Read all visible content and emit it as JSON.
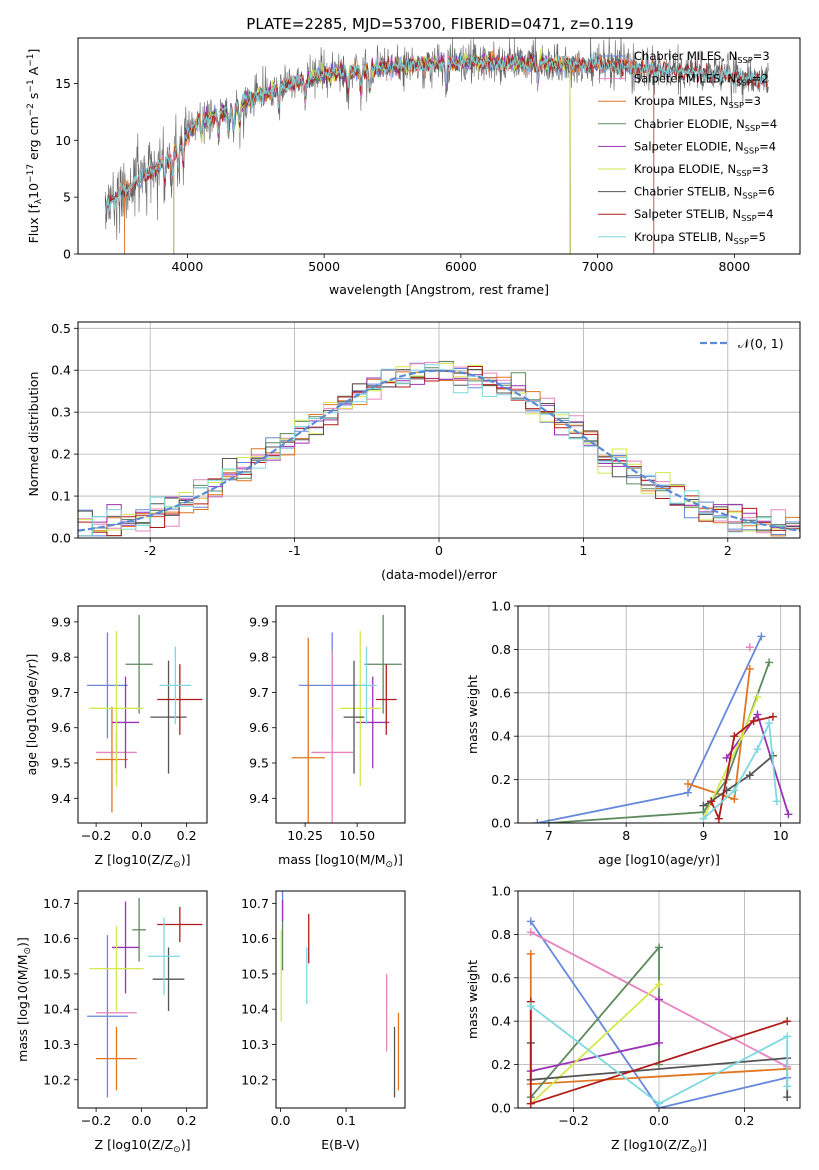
{
  "figure": {
    "title": "PLATE=2285, MJD=53700, FIBERID=0471, z=0.119"
  },
  "colors": {
    "chabrier_miles": "#6688dd",
    "salpeter_miles": "#e883bf",
    "kroupa_miles": "#e0761f",
    "chabrier_elodie": "#5c8a5c",
    "salpeter_elodie": "#9b33b5",
    "kroupa_elodie": "#d6e84f",
    "chabrier_stelib": "#555555",
    "salpeter_stelib": "#b01c1c",
    "kroupa_stelib": "#7fd8e0",
    "normal": "#5b8ad6"
  },
  "chart_data": [
    {
      "id": "spectrum",
      "type": "line",
      "xlabel": "wavelength [Angstrom, rest frame]",
      "ylabel": "Flux [f_λ 10^-17 erg cm^-2 s^-1 A^-1]",
      "xlim": [
        3200,
        8480
      ],
      "ylim": [
        0,
        19
      ],
      "xticks": [
        4000,
        5000,
        6000,
        7000,
        8000
      ],
      "yticks": [
        0,
        5,
        10,
        15
      ],
      "legend_position": "top-right",
      "series_names": [
        "Chabrier MILES, N_SSP=3",
        "Salpeter MILES, N_SSP=2",
        "Kroupa MILES, N_SSP=3",
        "Chabrier ELODIE, N_SSP=4",
        "Salpeter ELODIE, N_SSP=4",
        "Kroupa ELODIE, N_SSP=3",
        "Chabrier STELIB, N_SSP=6",
        "Salpeter STELIB, N_SSP=4",
        "Kroupa STELIB, N_SSP=5"
      ],
      "continuum": {
        "x": [
          3400,
          3500,
          3600,
          3700,
          3800,
          3900,
          4000,
          4100,
          4200,
          4300,
          4400,
          4500,
          4700,
          5000,
          5300,
          5600,
          6000,
          6500,
          7000,
          7500,
          8000,
          8250
        ],
        "y": [
          4.2,
          5.2,
          6.0,
          7.0,
          7.8,
          8.8,
          10.5,
          11.8,
          12.2,
          12.5,
          13.2,
          13.8,
          14.8,
          15.8,
          16.2,
          16.6,
          16.9,
          16.8,
          16.6,
          16.2,
          15.6,
          15.2
        ]
      },
      "model_ranges": [
        {
          "series": "Chabrier MILES",
          "xmin": 3540,
          "xmax": 7410
        },
        {
          "series": "Salpeter MILES",
          "xmin": 3540,
          "xmax": 7410
        },
        {
          "series": "Kroupa MILES",
          "xmin": 3540,
          "xmax": 7410
        },
        {
          "series": "Chabrier ELODIE",
          "xmin": 3900,
          "xmax": 6800
        },
        {
          "series": "Salpeter ELODIE",
          "xmin": 3900,
          "xmax": 6800
        },
        {
          "series": "Kroupa ELODIE",
          "xmin": 3900,
          "xmax": 6800
        },
        {
          "series": "Chabrier STELIB",
          "xmin": 3400,
          "xmax": 8250
        },
        {
          "series": "Salpeter STELIB",
          "xmin": 3400,
          "xmax": 8250
        },
        {
          "series": "Kroupa STELIB",
          "xmin": 3400,
          "xmax": 8250
        }
      ]
    },
    {
      "id": "residuals",
      "type": "histogram",
      "xlabel": "(data-model)/error",
      "ylabel": "Normed distribution",
      "xlim": [
        -2.5,
        2.5
      ],
      "ylim": [
        0,
        0.515
      ],
      "xticks": [
        -2,
        -1,
        0,
        1,
        2
      ],
      "yticks": [
        0.0,
        0.1,
        0.2,
        0.3,
        0.4,
        0.5
      ],
      "grid": true,
      "legend_position": "top-right",
      "legend_label": "N(0,1)",
      "bin_width": 0.1,
      "bin_start": -2.5,
      "gaussian": {
        "mean": 0,
        "sigma": 1
      }
    },
    {
      "id": "age_vs_Z",
      "type": "errorbar",
      "xlabel": "Z [log10(Z/Z⊙)]",
      "ylabel": "age [log10(age/yr)]",
      "xlim": [
        -0.28,
        0.29
      ],
      "ylim": [
        9.33,
        9.945
      ],
      "xticks": [
        -0.2,
        0.0,
        0.2
      ],
      "xtick_labels": [
        "−0.2",
        "0.0",
        "0.2"
      ],
      "yticks": [
        9.4,
        9.5,
        9.6,
        9.7,
        9.8,
        9.9
      ],
      "points": [
        {
          "series": "Chabrier MILES",
          "x": -0.15,
          "xerr": 0.09,
          "y": 9.72,
          "yerr": 0.15
        },
        {
          "series": "Salpeter MILES",
          "x": -0.11,
          "xerr": 0.09,
          "y": 9.53,
          "yerr": 0.06
        },
        {
          "series": "Kroupa MILES",
          "x": -0.13,
          "xerr": 0.07,
          "y": 9.51,
          "yerr": 0.15
        },
        {
          "series": "Chabrier ELODIE",
          "x": -0.01,
          "xerr": 0.06,
          "y": 9.78,
          "yerr": 0.14
        },
        {
          "series": "Salpeter ELODIE",
          "x": -0.07,
          "xerr": 0.06,
          "y": 9.615,
          "yerr": 0.13
        },
        {
          "series": "Kroupa ELODIE",
          "x": -0.11,
          "xerr": 0.12,
          "y": 9.655,
          "yerr": 0.22
        },
        {
          "series": "Chabrier STELIB",
          "x": 0.12,
          "xerr": 0.08,
          "y": 9.63,
          "yerr": 0.16
        },
        {
          "series": "Salpeter STELIB",
          "x": 0.17,
          "xerr": 0.1,
          "y": 9.68,
          "yerr": 0.1
        },
        {
          "series": "Kroupa STELIB",
          "x": 0.15,
          "xerr": 0.07,
          "y": 9.72,
          "yerr": 0.11
        }
      ]
    },
    {
      "id": "age_vs_mass",
      "type": "errorbar",
      "xlabel": "mass [log10(M/M⊙)]",
      "ylabel": "",
      "xlim": [
        10.11,
        10.73
      ],
      "ylim": [
        9.33,
        9.945
      ],
      "xticks": [
        10.25,
        10.5
      ],
      "xtick_labels": [
        "10.25",
        "10.50"
      ],
      "yticks": [
        9.4,
        9.5,
        9.6,
        9.7,
        9.8,
        9.9
      ],
      "points": [
        {
          "series": "Chabrier MILES",
          "x": 10.38,
          "xerr": 0.16,
          "y": 9.72,
          "yerr": 0.15
        },
        {
          "series": "Salpeter MILES",
          "x": 10.38,
          "xerr": 0.1,
          "y": 9.53,
          "yerr": 0.29
        },
        {
          "series": "Kroupa MILES",
          "x": 10.265,
          "xerr": 0.08,
          "y": 9.515,
          "yerr": 0.34
        },
        {
          "series": "Chabrier ELODIE",
          "x": 10.625,
          "xerr": 0.09,
          "y": 9.78,
          "yerr": 0.14
        },
        {
          "series": "Salpeter ELODIE",
          "x": 10.575,
          "xerr": 0.08,
          "y": 9.615,
          "yerr": 0.13
        },
        {
          "series": "Kroupa ELODIE",
          "x": 10.515,
          "xerr": 0.1,
          "y": 9.655,
          "yerr": 0.22
        },
        {
          "series": "Chabrier STELIB",
          "x": 10.485,
          "xerr": 0.05,
          "y": 9.63,
          "yerr": 0.16
        },
        {
          "series": "Salpeter STELIB",
          "x": 10.64,
          "xerr": 0.05,
          "y": 9.68,
          "yerr": 0.1
        },
        {
          "series": "Kroupa STELIB",
          "x": 10.545,
          "xerr": 0.05,
          "y": 9.72,
          "yerr": 0.11
        }
      ]
    },
    {
      "id": "weight_vs_age",
      "type": "line",
      "xlabel": "age [log10(age/yr)]",
      "ylabel": "mass weight",
      "xlim": [
        6.6,
        10.25
      ],
      "ylim": [
        0,
        1
      ],
      "xticks": [
        7,
        8,
        9,
        10
      ],
      "yticks": [
        0.0,
        0.2,
        0.4,
        0.6,
        0.8,
        1.0
      ],
      "grid": true,
      "series": [
        {
          "name": "Chabrier MILES",
          "x": [
            6.85,
            8.8,
            9.75
          ],
          "y": [
            0.0,
            0.14,
            0.86
          ]
        },
        {
          "name": "Salpeter MILES",
          "x": [
            9.6
          ],
          "y": [
            0.81
          ]
        },
        {
          "name": "Kroupa MILES",
          "x": [
            8.8,
            9.4,
            9.6
          ],
          "y": [
            0.18,
            0.11,
            0.71
          ]
        },
        {
          "name": "Chabrier ELODIE",
          "x": [
            7.0,
            9.0,
            9.3,
            9.85
          ],
          "y": [
            0.0,
            0.05,
            0.2,
            0.74
          ]
        },
        {
          "name": "Salpeter ELODIE",
          "x": [
            9.3,
            9.7,
            10.1
          ],
          "y": [
            0.3,
            0.5,
            0.04
          ]
        },
        {
          "name": "Kroupa ELODIE",
          "x": [
            9.0,
            9.5,
            9.7
          ],
          "y": [
            0.02,
            0.4,
            0.58
          ]
        },
        {
          "name": "Chabrier STELIB",
          "x": [
            9.0,
            9.1,
            9.3,
            9.6,
            9.9
          ],
          "y": [
            0.08,
            0.1,
            0.15,
            0.22,
            0.31
          ]
        },
        {
          "name": "Salpeter STELIB",
          "x": [
            9.1,
            9.2,
            9.4,
            9.65,
            9.9
          ],
          "y": [
            0.1,
            0.02,
            0.4,
            0.47,
            0.49
          ]
        },
        {
          "name": "Kroupa STELIB",
          "x": [
            9.0,
            9.4,
            9.7,
            9.85,
            9.95
          ],
          "y": [
            0.02,
            0.15,
            0.34,
            0.46,
            0.1
          ]
        }
      ]
    },
    {
      "id": "mass_vs_Z",
      "type": "errorbar",
      "xlabel": "Z [log10(Z/Z⊙)]",
      "ylabel": "mass [log10(M/M⊙)]",
      "xlim": [
        -0.28,
        0.29
      ],
      "ylim": [
        10.12,
        10.735
      ],
      "xticks": [
        -0.2,
        0.0,
        0.2
      ],
      "xtick_labels": [
        "−0.2",
        "0.0",
        "0.2"
      ],
      "yticks": [
        10.2,
        10.3,
        10.4,
        10.5,
        10.6,
        10.7
      ],
      "points": [
        {
          "series": "Chabrier MILES",
          "x": -0.15,
          "xerr": 0.09,
          "y": 10.38,
          "yerr": 0.23
        },
        {
          "series": "Salpeter MILES",
          "x": -0.11,
          "xerr": 0.09,
          "y": 10.39,
          "yerr": 0.0
        },
        {
          "series": "Kroupa MILES",
          "x": -0.11,
          "xerr": 0.09,
          "y": 10.26,
          "yerr": 0.09
        },
        {
          "series": "Chabrier ELODIE",
          "x": -0.01,
          "xerr": 0.03,
          "y": 10.625,
          "yerr": 0.09
        },
        {
          "series": "Salpeter ELODIE",
          "x": -0.07,
          "xerr": 0.06,
          "y": 10.575,
          "yerr": 0.13
        },
        {
          "series": "Kroupa ELODIE",
          "x": -0.11,
          "xerr": 0.12,
          "y": 10.515,
          "yerr": 0.12
        },
        {
          "series": "Chabrier STELIB",
          "x": 0.12,
          "xerr": 0.07,
          "y": 10.485,
          "yerr": 0.09
        },
        {
          "series": "Salpeter STELIB",
          "x": 0.17,
          "xerr": 0.1,
          "y": 10.64,
          "yerr": 0.05
        },
        {
          "series": "Kroupa STELIB",
          "x": 0.1,
          "xerr": 0.07,
          "y": 10.55,
          "yerr": 0.11
        }
      ]
    },
    {
      "id": "mass_vs_ebv",
      "type": "errorbar",
      "xlabel": "E(B-V)",
      "ylabel": "",
      "xlim": [
        -0.007,
        0.19
      ],
      "ylim": [
        10.12,
        10.735
      ],
      "xticks": [
        0.0,
        0.1
      ],
      "xtick_labels": [
        "0.0",
        "0.1"
      ],
      "yticks": [
        10.2,
        10.3,
        10.4,
        10.5,
        10.6,
        10.7
      ],
      "points": [
        {
          "series": "Chabrier MILES",
          "x": 0.003,
          "y": 10.7,
          "yerr": 0.05
        },
        {
          "series": "Salpeter MILES",
          "x": 0.162,
          "y": 10.39,
          "yerr": 0.11
        },
        {
          "series": "Kroupa MILES",
          "x": 0.18,
          "y": 10.28,
          "yerr": 0.11
        },
        {
          "series": "Chabrier ELODIE",
          "x": 0.003,
          "y": 10.58,
          "yerr": 0.07
        },
        {
          "series": "Salpeter ELODIE",
          "x": 0.003,
          "y": 10.68,
          "yerr": 0.03
        },
        {
          "series": "Kroupa ELODIE",
          "x": 0.001,
          "y": 10.495,
          "yerr": 0.13
        },
        {
          "series": "Chabrier STELIB",
          "x": 0.174,
          "y": 10.25,
          "yerr": 0.1
        },
        {
          "series": "Salpeter STELIB",
          "x": 0.043,
          "y": 10.6,
          "yerr": 0.07
        },
        {
          "series": "Kroupa STELIB",
          "x": 0.04,
          "y": 10.495,
          "yerr": 0.08
        }
      ]
    },
    {
      "id": "weight_vs_Z",
      "type": "line",
      "xlabel": "Z [log10(Z/Z⊙)]",
      "ylabel": "mass weight",
      "xlim": [
        -0.33,
        0.33
      ],
      "ylim": [
        0,
        1
      ],
      "xticks": [
        -0.2,
        0.0,
        0.2
      ],
      "xtick_labels": [
        "−0.2",
        "0.0",
        "0.2"
      ],
      "yticks": [
        0.0,
        0.2,
        0.4,
        0.6,
        0.8,
        1.0
      ],
      "grid": true,
      "series": [
        {
          "name": "Chabrier MILES",
          "x": [
            -0.3,
            0.0,
            0.3
          ],
          "y": [
            0.86,
            0.0,
            0.14
          ]
        },
        {
          "name": "Salpeter MILES",
          "x": [
            -0.3,
            0.3
          ],
          "y": [
            0.81,
            0.19
          ]
        },
        {
          "name": "Kroupa MILES",
          "x": [
            -0.3,
            -0.3,
            0.3
          ],
          "y": [
            0.71,
            0.11,
            0.18
          ]
        },
        {
          "name": "Chabrier ELODIE",
          "x": [
            -0.3,
            0.0,
            0.0
          ],
          "y": [
            0.05,
            0.74,
            0.2
          ]
        },
        {
          "name": "Salpeter ELODIE",
          "x": [
            -0.3,
            0.0,
            0.0
          ],
          "y": [
            0.17,
            0.3,
            0.5
          ]
        },
        {
          "name": "Kroupa ELODIE",
          "x": [
            -0.3,
            0.0
          ],
          "y": [
            0.02,
            0.57
          ]
        },
        {
          "name": "Chabrier STELIB",
          "x": [
            -0.3,
            -0.3,
            0.3,
            0.3
          ],
          "y": [
            0.3,
            0.13,
            0.23,
            0.05
          ]
        },
        {
          "name": "Salpeter STELIB",
          "x": [
            -0.3,
            -0.3,
            0.3
          ],
          "y": [
            0.49,
            0.02,
            0.4
          ]
        },
        {
          "name": "Kroupa STELIB",
          "x": [
            -0.3,
            0.0,
            0.3,
            0.3
          ],
          "y": [
            0.47,
            0.02,
            0.33,
            0.1
          ]
        }
      ]
    }
  ]
}
